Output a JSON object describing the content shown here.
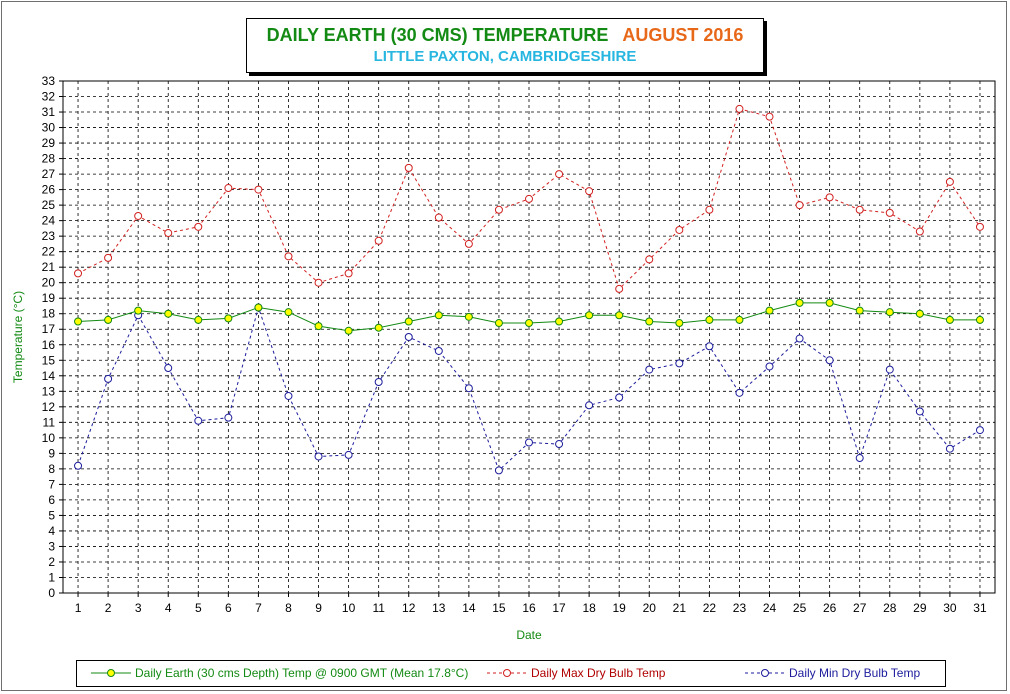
{
  "title": {
    "main": "DAILY EARTH (30 CMS) TEMPERATURE",
    "month": "AUGUST 2016",
    "subtitle": "LITTLE PAXTON, CAMBRIDGESHIRE"
  },
  "chart_data": {
    "type": "line",
    "xlabel": "Date",
    "ylabel": "Temperature (°C)",
    "ylim": [
      0,
      33
    ],
    "x": [
      1,
      2,
      3,
      4,
      5,
      6,
      7,
      8,
      9,
      10,
      11,
      12,
      13,
      14,
      15,
      16,
      17,
      18,
      19,
      20,
      21,
      22,
      23,
      24,
      25,
      26,
      27,
      28,
      29,
      30,
      31
    ],
    "grid": true,
    "legend_position": "bottom",
    "series": [
      {
        "name": "Daily Earth (30 cms Depth) Temp @ 0900 GMT (Mean 17.8°C)",
        "color": "#138a13",
        "marker_fill": "#ffff00",
        "style": "solid",
        "values": [
          17.5,
          17.6,
          18.2,
          18.0,
          17.6,
          17.7,
          18.4,
          18.1,
          17.2,
          16.9,
          17.1,
          17.5,
          17.9,
          17.8,
          17.4,
          17.4,
          17.5,
          17.9,
          17.9,
          17.5,
          17.4,
          17.6,
          17.6,
          18.2,
          18.7,
          18.7,
          18.2,
          18.1,
          18.0,
          17.6,
          17.6
        ]
      },
      {
        "name": "Daily Max Dry Bulb Temp",
        "color": "#d22020",
        "marker_fill": "#ffffff",
        "style": "dashed",
        "values": [
          20.6,
          21.6,
          24.3,
          23.2,
          23.6,
          26.1,
          26.0,
          21.7,
          20.0,
          20.6,
          22.7,
          27.4,
          24.2,
          22.5,
          24.7,
          25.4,
          27.0,
          25.9,
          19.6,
          21.5,
          23.4,
          24.7,
          31.2,
          30.7,
          25.0,
          25.5,
          24.7,
          24.5,
          23.3,
          26.5,
          23.6
        ]
      },
      {
        "name": "Daily Min Dry Bulb Temp",
        "color": "#1c1c9c",
        "marker_fill": "#ffffff",
        "style": "dashed",
        "values": [
          8.2,
          13.8,
          17.9,
          14.5,
          11.1,
          11.3,
          18.4,
          12.7,
          8.8,
          8.9,
          13.6,
          16.5,
          15.6,
          13.2,
          7.9,
          9.7,
          9.6,
          12.1,
          12.6,
          14.4,
          14.8,
          15.9,
          12.9,
          14.6,
          16.4,
          15.0,
          8.7,
          14.4,
          11.7,
          9.3,
          10.5
        ]
      }
    ]
  }
}
